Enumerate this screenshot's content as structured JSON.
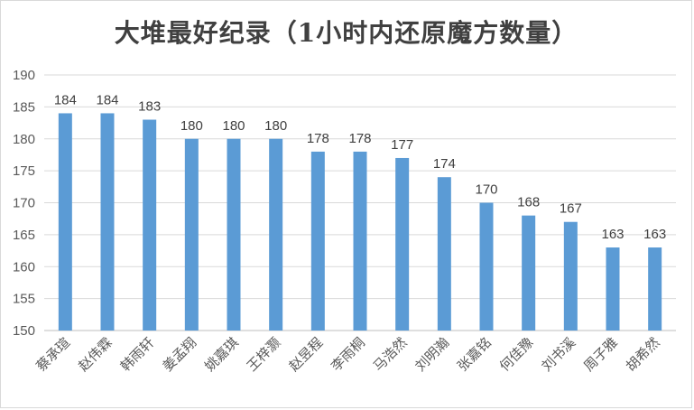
{
  "chart_data": {
    "type": "bar",
    "title": "大堆最好纪录（1小时内还原魔方数量）",
    "xlabel": "",
    "ylabel": "",
    "ylim": [
      150,
      190
    ],
    "yticks": [
      150,
      155,
      160,
      165,
      170,
      175,
      180,
      185,
      190
    ],
    "grid": true,
    "legend": "none",
    "categories": [
      "蔡承瑄",
      "赵伟霖",
      "韩雨轩",
      "姜孟翔",
      "姚嘉琪",
      "王梓灏",
      "赵昱程",
      "李雨桐",
      "马浩然",
      "刘明瀚",
      "张嘉铭",
      "何佳豫",
      "刘书溪",
      "周子雅",
      "胡希然"
    ],
    "values": [
      184,
      184,
      183,
      180,
      180,
      180,
      178,
      178,
      177,
      174,
      170,
      168,
      167,
      163,
      163
    ],
    "colors": {
      "bar": "#5b9bd5",
      "grid": "#d9d9d9",
      "axis_text": "#595959"
    }
  }
}
